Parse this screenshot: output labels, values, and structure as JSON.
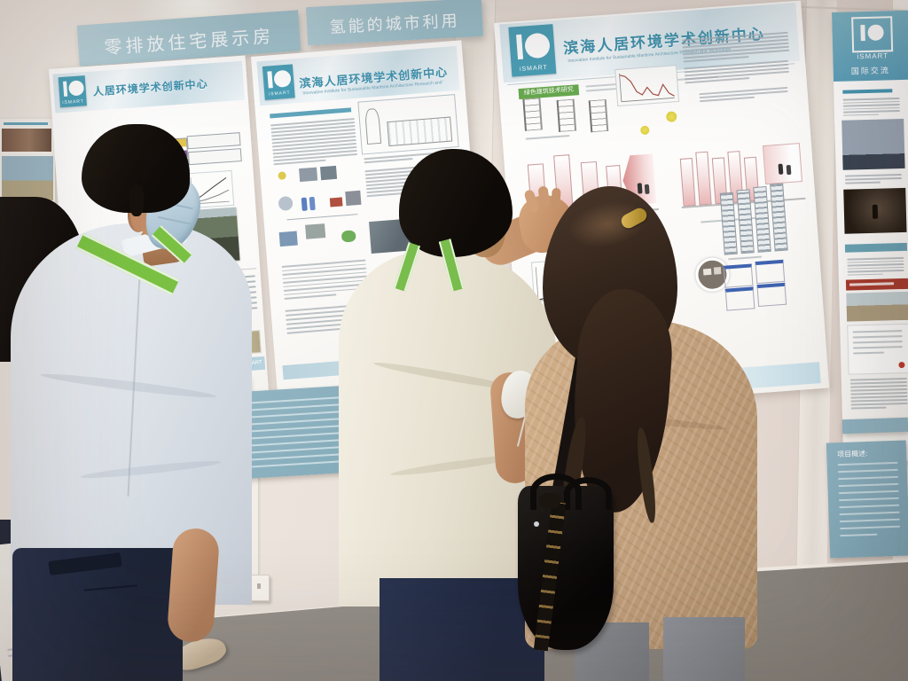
{
  "scene": {
    "setting": "exhibition hall poster session with four visitors viewing academic display boards"
  },
  "banners": {
    "left": "零排放住宅展示房",
    "center": "氢能的城市利用"
  },
  "logo": {
    "text": "iSMART"
  },
  "posters": {
    "left": {
      "title": "人居环境学术创新中心",
      "footer": "of Technology  iSMART"
    },
    "middle": {
      "title": "滨海人居环境学术创新中心",
      "subtitle": "Innovation Institute for Sustainable Maritime Architecture Research and Technology",
      "footer": "Tsinghua Un"
    },
    "main": {
      "title": "滨海人居环境学术创新中心",
      "subtitle": "Innovation Institute for Sustainable Maritime Architecture Research and Technology",
      "green_tag": "绿色建筑技术研究"
    },
    "right": {
      "title": "国际交流"
    }
  },
  "plaques": {
    "right_heading": "项目概述:"
  },
  "colors": {
    "banner_teal": "#a9ccd6",
    "poster_title_blue": "#3f93af",
    "logo_teal": "#4ba0b8",
    "tag_green": "#68a94e",
    "plaque_teal": "#86aaba",
    "lanyard_green": "#76b94e",
    "wall": "#eae2db",
    "carpet": "#96918b"
  }
}
